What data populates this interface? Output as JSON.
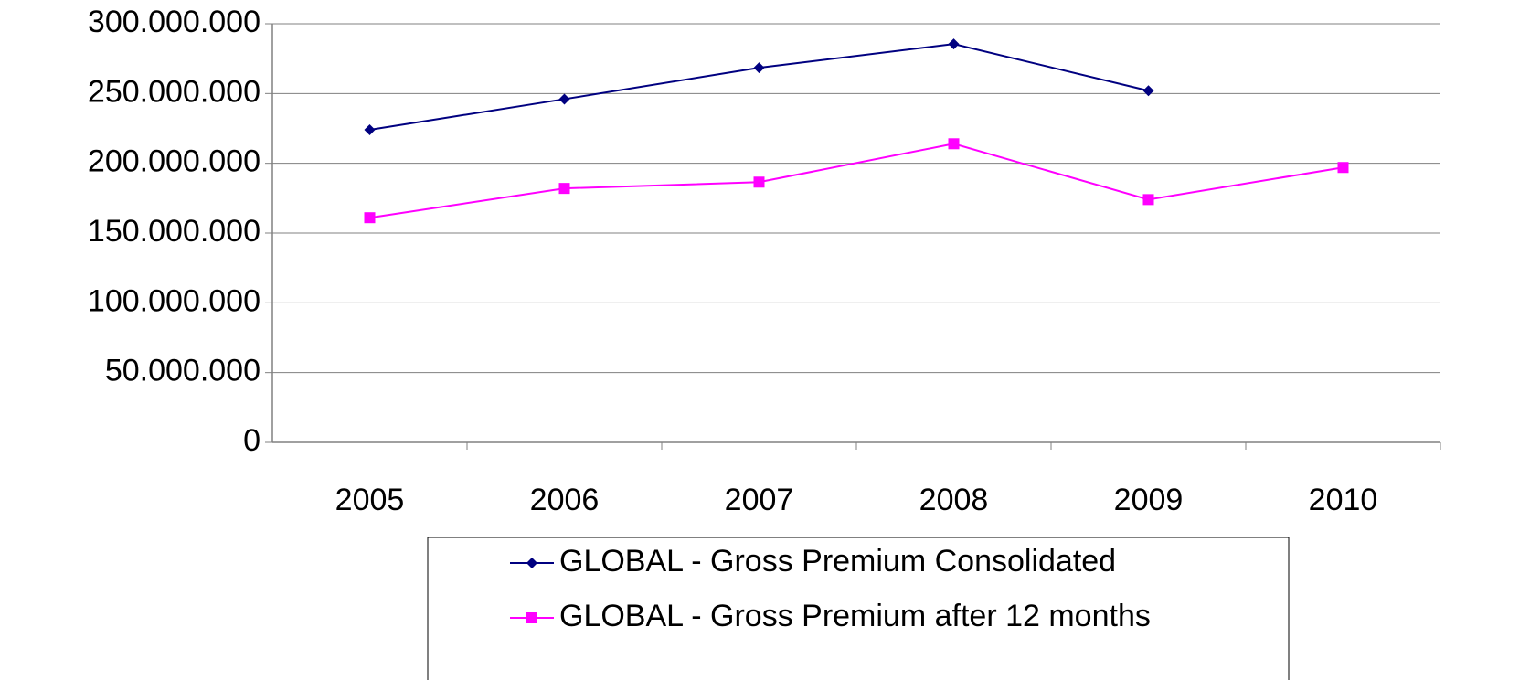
{
  "chart_data": {
    "type": "line",
    "categories": [
      "2005",
      "2006",
      "2007",
      "2008",
      "2009",
      "2010"
    ],
    "series": [
      {
        "name": "GLOBAL - Gross Premium Consolidated",
        "color": "#000080",
        "marker": "diamond",
        "values": [
          224000000,
          246000000,
          268500000,
          285500000,
          252000000,
          null
        ]
      },
      {
        "name": "GLOBAL - Gross Premium after 12 months",
        "color": "#ff00ff",
        "marker": "square",
        "values": [
          161000000,
          182000000,
          186500000,
          214000000,
          174000000,
          197000000
        ]
      }
    ],
    "ylim": [
      0,
      300000000
    ],
    "yticks": [
      0,
      {
        "value": 50000000,
        "label": "50.000.000"
      },
      {
        "value": 100000000,
        "label": "100.000.000"
      },
      {
        "value": 150000000,
        "label": "150.000.000"
      },
      {
        "value": 200000000,
        "label": "200.000.000"
      },
      {
        "value": 250000000,
        "label": "250.000.000"
      },
      {
        "value": 300000000,
        "label": "300.000.000"
      }
    ],
    "grid": true,
    "legend": "bottom"
  }
}
